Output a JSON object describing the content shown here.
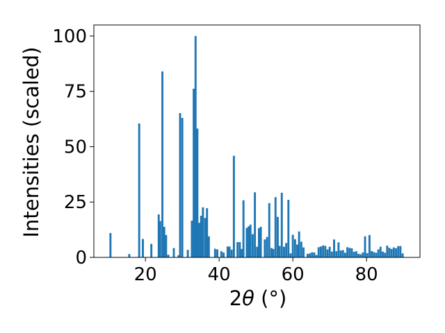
{
  "chart_data": {
    "type": "bar",
    "xlabel_prefix": "2",
    "xlabel_symbol": "θ",
    "xlabel_unit": " (°)",
    "ylabel": "Intensities (scaled)",
    "xlim": [
      6.0,
      94.5
    ],
    "ylim": [
      0,
      105
    ],
    "xticks": [
      20,
      40,
      60,
      80
    ],
    "yticks": [
      0,
      25,
      50,
      75,
      100
    ],
    "bar_width": 0.55,
    "color": "#1f77b4",
    "points": [
      {
        "x": 10.5,
        "y": 11
      },
      {
        "x": 15.6,
        "y": 1.5
      },
      {
        "x": 18.3,
        "y": 60.5
      },
      {
        "x": 19.3,
        "y": 8.3
      },
      {
        "x": 21.6,
        "y": 6.1
      },
      {
        "x": 23.6,
        "y": 19.4
      },
      {
        "x": 24.0,
        "y": 16.4
      },
      {
        "x": 24.6,
        "y": 84
      },
      {
        "x": 25.1,
        "y": 13.8
      },
      {
        "x": 25.6,
        "y": 10.1
      },
      {
        "x": 26.2,
        "y": 1.2
      },
      {
        "x": 27.7,
        "y": 4.2
      },
      {
        "x": 29.0,
        "y": 1.0
      },
      {
        "x": 29.4,
        "y": 65.2
      },
      {
        "x": 30.0,
        "y": 63
      },
      {
        "x": 31.5,
        "y": 3.4
      },
      {
        "x": 32.6,
        "y": 16.6
      },
      {
        "x": 33.1,
        "y": 76.2
      },
      {
        "x": 33.6,
        "y": 100
      },
      {
        "x": 34.1,
        "y": 58.2
      },
      {
        "x": 34.6,
        "y": 15.6
      },
      {
        "x": 35.1,
        "y": 18.8
      },
      {
        "x": 35.6,
        "y": 22.6
      },
      {
        "x": 36.2,
        "y": 17.8
      },
      {
        "x": 36.7,
        "y": 22.2
      },
      {
        "x": 37.2,
        "y": 9.5
      },
      {
        "x": 38.9,
        "y": 3.9
      },
      {
        "x": 39.5,
        "y": 3.6
      },
      {
        "x": 40.6,
        "y": 2.8
      },
      {
        "x": 41.2,
        "y": 2.2
      },
      {
        "x": 42.3,
        "y": 4.9
      },
      {
        "x": 42.8,
        "y": 4.9
      },
      {
        "x": 43.4,
        "y": 3.5
      },
      {
        "x": 44.0,
        "y": 45.9
      },
      {
        "x": 45.0,
        "y": 6.9
      },
      {
        "x": 45.6,
        "y": 6.9
      },
      {
        "x": 46.1,
        "y": 3.8
      },
      {
        "x": 46.6,
        "y": 25.8
      },
      {
        "x": 47.5,
        "y": 13.3
      },
      {
        "x": 48.0,
        "y": 14
      },
      {
        "x": 48.5,
        "y": 14.8
      },
      {
        "x": 49.1,
        "y": 10.5
      },
      {
        "x": 49.7,
        "y": 29.4
      },
      {
        "x": 50.3,
        "y": 4.8
      },
      {
        "x": 50.8,
        "y": 13.2
      },
      {
        "x": 51.3,
        "y": 13.8
      },
      {
        "x": 52.4,
        "y": 8.1
      },
      {
        "x": 53.0,
        "y": 9.2
      },
      {
        "x": 53.6,
        "y": 24.5
      },
      {
        "x": 54.2,
        "y": 4.2
      },
      {
        "x": 54.7,
        "y": 3.8
      },
      {
        "x": 55.3,
        "y": 27.2
      },
      {
        "x": 55.9,
        "y": 18.3
      },
      {
        "x": 56.4,
        "y": 5.2
      },
      {
        "x": 57.0,
        "y": 29.2
      },
      {
        "x": 57.6,
        "y": 4.8
      },
      {
        "x": 58.2,
        "y": 6.5
      },
      {
        "x": 58.8,
        "y": 26
      },
      {
        "x": 59.4,
        "y": 1.8
      },
      {
        "x": 60.0,
        "y": 10.2
      },
      {
        "x": 60.6,
        "y": 8.2
      },
      {
        "x": 61.2,
        "y": 5.8
      },
      {
        "x": 61.7,
        "y": 11.7
      },
      {
        "x": 62.3,
        "y": 7.1
      },
      {
        "x": 62.9,
        "y": 4.5
      },
      {
        "x": 64.0,
        "y": 1.6
      },
      {
        "x": 64.6,
        "y": 1.8
      },
      {
        "x": 65.2,
        "y": 2.3
      },
      {
        "x": 65.8,
        "y": 2.2
      },
      {
        "x": 66.4,
        "y": 1.1
      },
      {
        "x": 67.0,
        "y": 4.6
      },
      {
        "x": 67.6,
        "y": 4.9
      },
      {
        "x": 68.2,
        "y": 5.4
      },
      {
        "x": 68.8,
        "y": 5.2
      },
      {
        "x": 69.4,
        "y": 3.6
      },
      {
        "x": 70.0,
        "y": 4.8
      },
      {
        "x": 70.6,
        "y": 2.6
      },
      {
        "x": 71.2,
        "y": 8.1
      },
      {
        "x": 71.8,
        "y": 2.8
      },
      {
        "x": 72.4,
        "y": 6.8
      },
      {
        "x": 73.0,
        "y": 3.1
      },
      {
        "x": 73.6,
        "y": 3.3
      },
      {
        "x": 74.2,
        "y": 2.1
      },
      {
        "x": 74.8,
        "y": 4.6
      },
      {
        "x": 75.4,
        "y": 4.3
      },
      {
        "x": 76.0,
        "y": 4.1
      },
      {
        "x": 76.6,
        "y": 2.5
      },
      {
        "x": 77.2,
        "y": 2.8
      },
      {
        "x": 77.8,
        "y": 1.6
      },
      {
        "x": 78.4,
        "y": 1.4
      },
      {
        "x": 79.0,
        "y": 2.2
      },
      {
        "x": 79.6,
        "y": 9.5
      },
      {
        "x": 80.2,
        "y": 1.9
      },
      {
        "x": 80.8,
        "y": 10.1
      },
      {
        "x": 81.4,
        "y": 2.9
      },
      {
        "x": 82.0,
        "y": 2.4
      },
      {
        "x": 82.6,
        "y": 2.1
      },
      {
        "x": 83.2,
        "y": 3.6
      },
      {
        "x": 83.8,
        "y": 4.8
      },
      {
        "x": 84.4,
        "y": 2.6
      },
      {
        "x": 85.0,
        "y": 2.1
      },
      {
        "x": 85.6,
        "y": 5.3
      },
      {
        "x": 86.2,
        "y": 4.3
      },
      {
        "x": 86.8,
        "y": 3.8
      },
      {
        "x": 87.4,
        "y": 4.5
      },
      {
        "x": 88.0,
        "y": 4.1
      },
      {
        "x": 88.6,
        "y": 5.1
      },
      {
        "x": 89.2,
        "y": 5.1
      },
      {
        "x": 89.8,
        "y": 1.8
      }
    ]
  }
}
